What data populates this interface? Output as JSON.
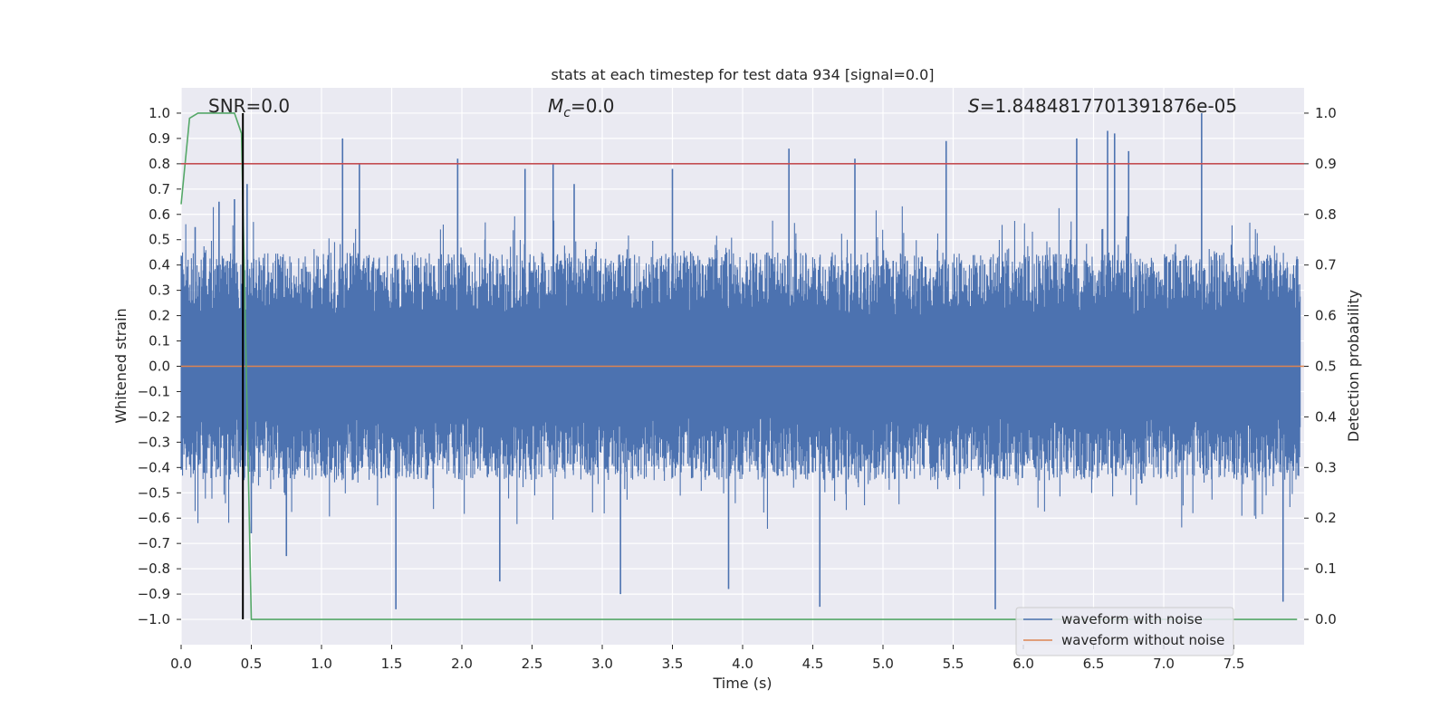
{
  "chart_data": {
    "type": "line",
    "title": "stats at each timestep for test data 934 [signal=0.0]",
    "xlabel": "Time (s)",
    "ylabel": "Whitened strain",
    "ylabel_right": "Detection probability",
    "xlim": [
      0.0,
      8.0
    ],
    "ylim": [
      -1.1,
      1.1
    ],
    "ylim_right": [
      -0.05,
      1.05
    ],
    "x_ticks": [
      0.0,
      0.5,
      1.0,
      1.5,
      2.0,
      2.5,
      3.0,
      3.5,
      4.0,
      4.5,
      5.0,
      5.5,
      6.0,
      6.5,
      7.0,
      7.5
    ],
    "x_tick_labels": [
      "0.0",
      "0.5",
      "1.0",
      "1.5",
      "2.0",
      "2.5",
      "3.0",
      "3.5",
      "4.0",
      "4.5",
      "5.0",
      "5.5",
      "6.0",
      "6.5",
      "7.0",
      "7.5"
    ],
    "y_ticks": [
      1.0,
      0.9,
      0.8,
      0.7,
      0.6,
      0.5,
      0.4,
      0.3,
      0.2,
      0.1,
      0.0,
      -0.1,
      -0.2,
      -0.3,
      -0.4,
      -0.5,
      -0.6,
      -0.7,
      -0.8,
      -0.9,
      -1.0
    ],
    "y_tick_labels": [
      "1.0",
      "0.9",
      "0.8",
      "0.7",
      "0.6",
      "0.5",
      "0.4",
      "0.3",
      "0.2",
      "0.1",
      "0.0",
      "−0.1",
      "−0.2",
      "−0.3",
      "−0.4",
      "−0.5",
      "−0.6",
      "−0.7",
      "−0.8",
      "−0.9",
      "−1.0"
    ],
    "y_ticks_right": [
      1.0,
      0.9,
      0.8,
      0.7,
      0.6,
      0.5,
      0.4,
      0.3,
      0.2,
      0.1,
      0.0
    ],
    "y_tick_labels_right": [
      "1.0",
      "0.9",
      "0.8",
      "0.7",
      "0.6",
      "0.5",
      "0.4",
      "0.3",
      "0.2",
      "0.1",
      "0.0"
    ],
    "grid": true,
    "legend_position": "lower-right",
    "annotations": {
      "snr": "SNR=0.0",
      "mc_symbol": "M",
      "mc_sub": "c",
      "mc_value": "=0.0",
      "s_symbol": "S",
      "s_value": "=1.8484817701391876e-05"
    },
    "series": [
      {
        "name": "waveform with noise",
        "color": "#4c72b0",
        "style": "dense noise, envelope approx ±0.5 with spikes",
        "spike_times": [
          0.1,
          0.27,
          0.38,
          0.47,
          0.5,
          0.75,
          1.15,
          1.27,
          1.53,
          1.97,
          2.27,
          2.45,
          2.65,
          2.8,
          3.13,
          3.5,
          3.9,
          4.33,
          4.55,
          4.8,
          5.45,
          5.8,
          6.38,
          6.6,
          6.65,
          6.75,
          7.27,
          7.85
        ],
        "spike_values": [
          0.55,
          0.65,
          0.66,
          0.72,
          -0.66,
          -0.75,
          0.9,
          0.8,
          -0.96,
          0.82,
          -0.85,
          0.78,
          0.8,
          0.72,
          -0.9,
          0.78,
          -0.88,
          0.86,
          -0.95,
          0.82,
          0.89,
          -0.96,
          0.9,
          0.93,
          0.92,
          0.85,
          1.0,
          -0.93
        ]
      },
      {
        "name": "waveform without noise",
        "color": "#dd8452",
        "x": [
          0.0,
          8.0
        ],
        "values": [
          0.0,
          0.0
        ]
      },
      {
        "name": "",
        "color": "#55a868",
        "axis": "right",
        "x": [
          0.0,
          0.06,
          0.12,
          0.38,
          0.43,
          0.5,
          7.95
        ],
        "values": [
          0.82,
          0.99,
          1.0,
          1.0,
          0.96,
          0.0,
          0.0
        ]
      },
      {
        "name": "",
        "color": "#c44e52",
        "axis": "right",
        "x": [
          0.0,
          8.0
        ],
        "values": [
          0.9,
          0.9
        ]
      },
      {
        "name": "",
        "color": "#000000",
        "type": "vline",
        "x": [
          0.44,
          0.44
        ],
        "values": [
          1.0,
          -1.0
        ]
      }
    ]
  }
}
